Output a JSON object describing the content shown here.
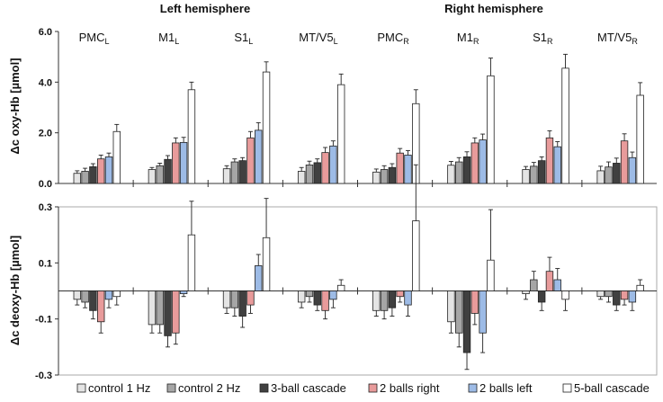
{
  "chart_data": [
    {
      "type": "bar",
      "name": "oxy",
      "ylabel": "Δc oxy-Hb [µmol]",
      "ylim": [
        0,
        6.0
      ],
      "yticks": [
        "0.0",
        "2.0",
        "4.0",
        "6.0"
      ],
      "yticks_values": [
        0,
        2,
        4,
        6
      ],
      "groups": [
        {
          "name": "PMC",
          "sub": "L",
          "values": [
            0.4,
            0.48,
            0.66,
            0.97,
            1.05,
            2.05
          ],
          "errors": [
            0.1,
            0.12,
            0.12,
            0.15,
            0.15,
            0.28
          ]
        },
        {
          "name": "M1",
          "sub": "L",
          "values": [
            0.55,
            0.7,
            0.95,
            1.6,
            1.62,
            3.7
          ],
          "errors": [
            0.08,
            0.1,
            0.15,
            0.2,
            0.2,
            0.3
          ]
        },
        {
          "name": "S1",
          "sub": "L",
          "values": [
            0.58,
            0.85,
            0.9,
            1.8,
            2.1,
            4.4
          ],
          "errors": [
            0.12,
            0.12,
            0.12,
            0.25,
            0.3,
            0.4
          ]
        },
        {
          "name": "MT/V5",
          "sub": "L",
          "values": [
            0.48,
            0.73,
            0.82,
            1.22,
            1.48,
            3.9
          ],
          "errors": [
            0.15,
            0.15,
            0.15,
            0.2,
            0.2,
            0.42
          ]
        },
        {
          "name": "PMC",
          "sub": "R",
          "values": [
            0.45,
            0.55,
            0.63,
            1.2,
            1.12,
            3.15
          ],
          "errors": [
            0.12,
            0.15,
            0.15,
            0.18,
            0.18,
            0.55
          ]
        },
        {
          "name": "M1",
          "sub": "R",
          "values": [
            0.72,
            0.85,
            1.05,
            1.6,
            1.72,
            4.25
          ],
          "errors": [
            0.15,
            0.17,
            0.2,
            0.2,
            0.23,
            0.7
          ]
        },
        {
          "name": "S1",
          "sub": "R",
          "values": [
            0.55,
            0.68,
            0.9,
            1.8,
            1.45,
            4.55
          ],
          "errors": [
            0.12,
            0.15,
            0.15,
            0.28,
            0.2,
            0.55
          ]
        },
        {
          "name": "MT/V5",
          "sub": "R",
          "values": [
            0.5,
            0.65,
            0.8,
            1.68,
            1.02,
            3.48
          ],
          "errors": [
            0.18,
            0.2,
            0.2,
            0.28,
            0.22,
            0.5
          ]
        }
      ]
    },
    {
      "type": "bar",
      "name": "deoxy",
      "ylabel": "Δc deoxy-Hb [µmol]",
      "ylim": [
        -0.3,
        0.3
      ],
      "yticks": [
        "0.3",
        "0.1",
        "-0.1",
        "-0.3"
      ],
      "yticks_values": [
        0.3,
        0.1,
        -0.1,
        -0.3
      ],
      "groups": [
        {
          "name": "PMC",
          "sub": "L",
          "values": [
            -0.03,
            -0.04,
            -0.07,
            -0.11,
            -0.03,
            -0.02
          ],
          "errors": [
            0.02,
            0.02,
            0.03,
            0.04,
            0.03,
            0.03
          ]
        },
        {
          "name": "M1",
          "sub": "L",
          "values": [
            -0.12,
            -0.12,
            -0.16,
            -0.15,
            -0.01,
            0.2
          ],
          "errors": [
            0.03,
            0.03,
            0.04,
            0.04,
            0.01,
            0.12
          ]
        },
        {
          "name": "S1",
          "sub": "L",
          "values": [
            -0.06,
            -0.06,
            -0.09,
            -0.05,
            0.09,
            0.19
          ],
          "errors": [
            0.02,
            0.03,
            0.04,
            0.03,
            0.04,
            0.14
          ]
        },
        {
          "name": "MT/V5",
          "sub": "L",
          "values": [
            -0.04,
            -0.02,
            -0.05,
            -0.07,
            -0.03,
            0.02
          ],
          "errors": [
            0.02,
            0.02,
            0.02,
            0.03,
            0.03,
            0.02
          ]
        },
        {
          "name": "PMC",
          "sub": "R",
          "values": [
            -0.07,
            -0.07,
            -0.06,
            -0.02,
            -0.05,
            0.25
          ],
          "errors": [
            0.02,
            0.03,
            0.03,
            0.02,
            0.04,
            0.2
          ]
        },
        {
          "name": "M1",
          "sub": "R",
          "values": [
            -0.11,
            -0.15,
            -0.22,
            -0.08,
            -0.15,
            0.11
          ],
          "errors": [
            0.04,
            0.05,
            0.06,
            0.04,
            0.07,
            0.18
          ]
        },
        {
          "name": "S1",
          "sub": "R",
          "values": [
            -0.01,
            0.04,
            -0.04,
            0.07,
            0.04,
            -0.03
          ],
          "errors": [
            0.02,
            0.03,
            0.03,
            0.05,
            0.04,
            0.04
          ]
        },
        {
          "name": "MT/V5",
          "sub": "R",
          "values": [
            -0.02,
            -0.02,
            -0.05,
            -0.03,
            -0.04,
            0.02
          ],
          "errors": [
            0.01,
            0.02,
            0.02,
            0.02,
            0.03,
            0.02
          ]
        }
      ]
    }
  ],
  "hemispheres": {
    "left": "Left hemisphere",
    "right": "Right hemisphere"
  },
  "legend": [
    {
      "label": "control 1 Hz",
      "color": "#e4e4e4"
    },
    {
      "label": "control 2 Hz",
      "color": "#a6a6a6"
    },
    {
      "label": "3-ball cascade",
      "color": "#404040"
    },
    {
      "label": "2 balls right",
      "color": "#e89b9b"
    },
    {
      "label": "2 balls left",
      "color": "#9dbbe6"
    },
    {
      "label": "5-ball cascade",
      "color": "#ffffff"
    }
  ]
}
